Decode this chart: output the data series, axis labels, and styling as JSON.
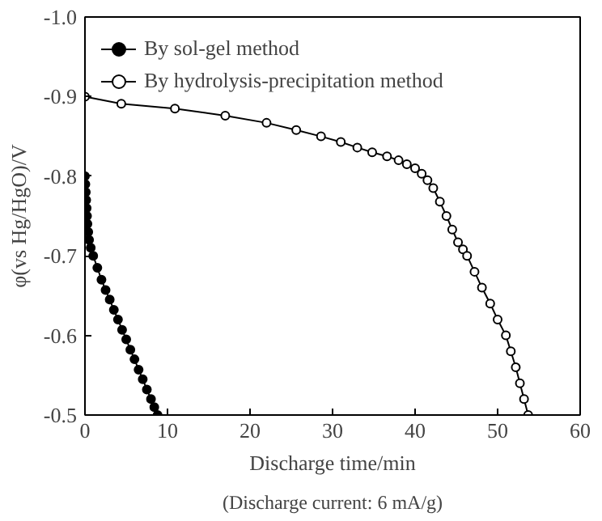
{
  "chart_data": {
    "type": "line",
    "xlabel": "Discharge time/min",
    "ylabel": "φ(vs Hg/HgO)/V",
    "xlim": [
      0,
      60
    ],
    "xticks": [
      0,
      10,
      20,
      30,
      40,
      50,
      60
    ],
    "ylim": [
      -0.5,
      -1.0
    ],
    "yticks": [
      {
        "value": -1.0,
        "label": "-1.0"
      },
      -0.9,
      -0.8,
      -0.7,
      -0.6,
      -0.5
    ],
    "grid": false,
    "legend": "top left",
    "line_style": "solid",
    "series": [
      {
        "name": "By sol-gel method",
        "color": "#000000",
        "marker": "circle",
        "x": [
          0,
          0.05,
          0.1,
          0.15,
          0.2,
          0.25,
          0.3,
          0.4,
          0.5,
          0.7,
          1,
          1.5,
          2,
          2.5,
          3,
          3.5,
          4,
          4.5,
          5,
          5.5,
          6,
          6.5,
          7,
          7.5,
          8,
          8.4,
          8.8
        ],
        "values": [
          -0.8,
          -0.79,
          -0.78,
          -0.77,
          -0.76,
          -0.75,
          -0.74,
          -0.73,
          -0.72,
          -0.71,
          -0.7,
          -0.685,
          -0.67,
          -0.657,
          -0.645,
          -0.632,
          -0.62,
          -0.607,
          -0.595,
          -0.582,
          -0.57,
          -0.557,
          -0.545,
          -0.532,
          -0.52,
          -0.51,
          -0.5
        ]
      },
      {
        "name": "By hydrolysis-precipitation method",
        "color": "#000000",
        "marker": "circle",
        "x": [
          0,
          4.4,
          10.9,
          17,
          22,
          25.6,
          28.6,
          31,
          33,
          34.8,
          36.6,
          38,
          39,
          40,
          40.8,
          41.5,
          42.2,
          43,
          43.8,
          44.5,
          45.2,
          45.8,
          46.3,
          47.2,
          48.1,
          49.1,
          50.0,
          51.0,
          51.6,
          52.2,
          52.7,
          53.2,
          53.7
        ],
        "values": [
          -0.9,
          -0.891,
          -0.885,
          -0.876,
          -0.867,
          -0.858,
          -0.85,
          -0.843,
          -0.836,
          -0.83,
          -0.825,
          -0.82,
          -0.815,
          -0.81,
          -0.803,
          -0.795,
          -0.785,
          -0.768,
          -0.75,
          -0.733,
          -0.717,
          -0.708,
          -0.7,
          -0.68,
          -0.66,
          -0.64,
          -0.62,
          -0.6,
          -0.58,
          -0.56,
          -0.54,
          -0.52,
          -0.5
        ]
      }
    ],
    "annotations": [
      "(Discharge current: 6 mA/g)"
    ]
  }
}
